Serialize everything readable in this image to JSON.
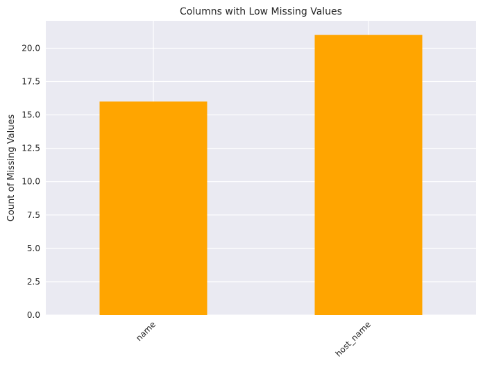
{
  "chart_data": {
    "type": "bar",
    "title": "Columns with Low Missing Values",
    "xlabel": "",
    "ylabel": "Count of Missing Values",
    "categories": [
      "name",
      "host_name"
    ],
    "values": [
      16,
      21
    ],
    "ylim": [
      0,
      22.05
    ],
    "yticks": [
      "0.0",
      "2.5",
      "5.0",
      "7.5",
      "10.0",
      "12.5",
      "15.0",
      "17.5",
      "20.0"
    ],
    "bar_color": "#FFA500",
    "plot_background": "#EAEAF2",
    "grid_color": "#FFFFFF",
    "grid": true,
    "xtick_rotation": -45
  }
}
